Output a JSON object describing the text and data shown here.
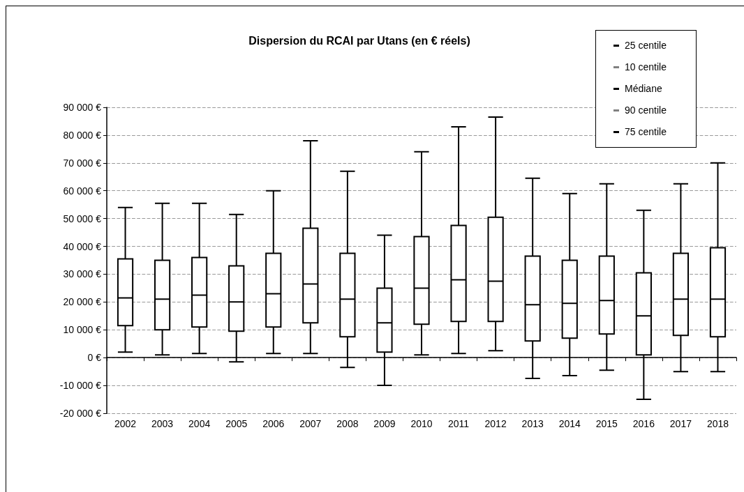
{
  "chart_data": {
    "type": "box",
    "title": "Dispersion du RCAI par Utans (en € réels)",
    "categories": [
      "2002",
      "2003",
      "2004",
      "2005",
      "2006",
      "2007",
      "2008",
      "2009",
      "2010",
      "2011",
      "2012",
      "2013",
      "2014",
      "2015",
      "2016",
      "2017",
      "2018"
    ],
    "boxes": [
      {
        "low": 2000,
        "q1": 11500,
        "median": 21500,
        "q3": 35500,
        "high": 54000
      },
      {
        "low": 1000,
        "q1": 10000,
        "median": 21000,
        "q3": 35000,
        "high": 55500
      },
      {
        "low": 1500,
        "q1": 11000,
        "median": 22500,
        "q3": 36000,
        "high": 55500
      },
      {
        "low": -1500,
        "q1": 9500,
        "median": 20000,
        "q3": 33000,
        "high": 51500
      },
      {
        "low": 1500,
        "q1": 11000,
        "median": 23000,
        "q3": 37500,
        "high": 60000
      },
      {
        "low": 1500,
        "q1": 12500,
        "median": 26500,
        "q3": 46500,
        "high": 78000
      },
      {
        "low": -3500,
        "q1": 7500,
        "median": 21000,
        "q3": 37500,
        "high": 67000
      },
      {
        "low": -10000,
        "q1": 2000,
        "median": 12500,
        "q3": 25000,
        "high": 44000
      },
      {
        "low": 1000,
        "q1": 12000,
        "median": 25000,
        "q3": 43500,
        "high": 74000
      },
      {
        "low": 1500,
        "q1": 13000,
        "median": 28000,
        "q3": 47500,
        "high": 83000
      },
      {
        "low": 2500,
        "q1": 13000,
        "median": 27500,
        "q3": 50500,
        "high": 86500
      },
      {
        "low": -7500,
        "q1": 6000,
        "median": 19000,
        "q3": 36500,
        "high": 64500
      },
      {
        "low": -6500,
        "q1": 7000,
        "median": 19500,
        "q3": 35000,
        "high": 59000
      },
      {
        "low": -4500,
        "q1": 8500,
        "median": 20500,
        "q3": 36500,
        "high": 62500
      },
      {
        "low": -15000,
        "q1": 1000,
        "median": 15000,
        "q3": 30500,
        "high": 53000
      },
      {
        "low": -5000,
        "q1": 8000,
        "median": 21000,
        "q3": 37500,
        "high": 62500
      },
      {
        "low": -5000,
        "q1": 7500,
        "median": 21000,
        "q3": 39500,
        "high": 70000
      }
    ],
    "ylim": [
      -20000,
      90000
    ],
    "yticks": [
      {
        "value": -20000,
        "label": "-20 000 €"
      },
      {
        "value": -10000,
        "label": "-10 000 €"
      },
      {
        "value": 0,
        "label": "0 €"
      },
      {
        "value": 10000,
        "label": "10 000 €"
      },
      {
        "value": 20000,
        "label": "20 000 €"
      },
      {
        "value": 30000,
        "label": "30 000 €"
      },
      {
        "value": 40000,
        "label": "40 000 €"
      },
      {
        "value": 50000,
        "label": "50 000 €"
      },
      {
        "value": 60000,
        "label": "60 000 €"
      },
      {
        "value": 70000,
        "label": "70 000 €"
      },
      {
        "value": 80000,
        "label": "80 000 €"
      },
      {
        "value": 90000,
        "label": "90 000 €"
      }
    ],
    "grid": "y",
    "annotations": [
      "25 centile",
      "10 centile",
      "Médiane",
      "90 centile",
      "75 centile"
    ]
  }
}
